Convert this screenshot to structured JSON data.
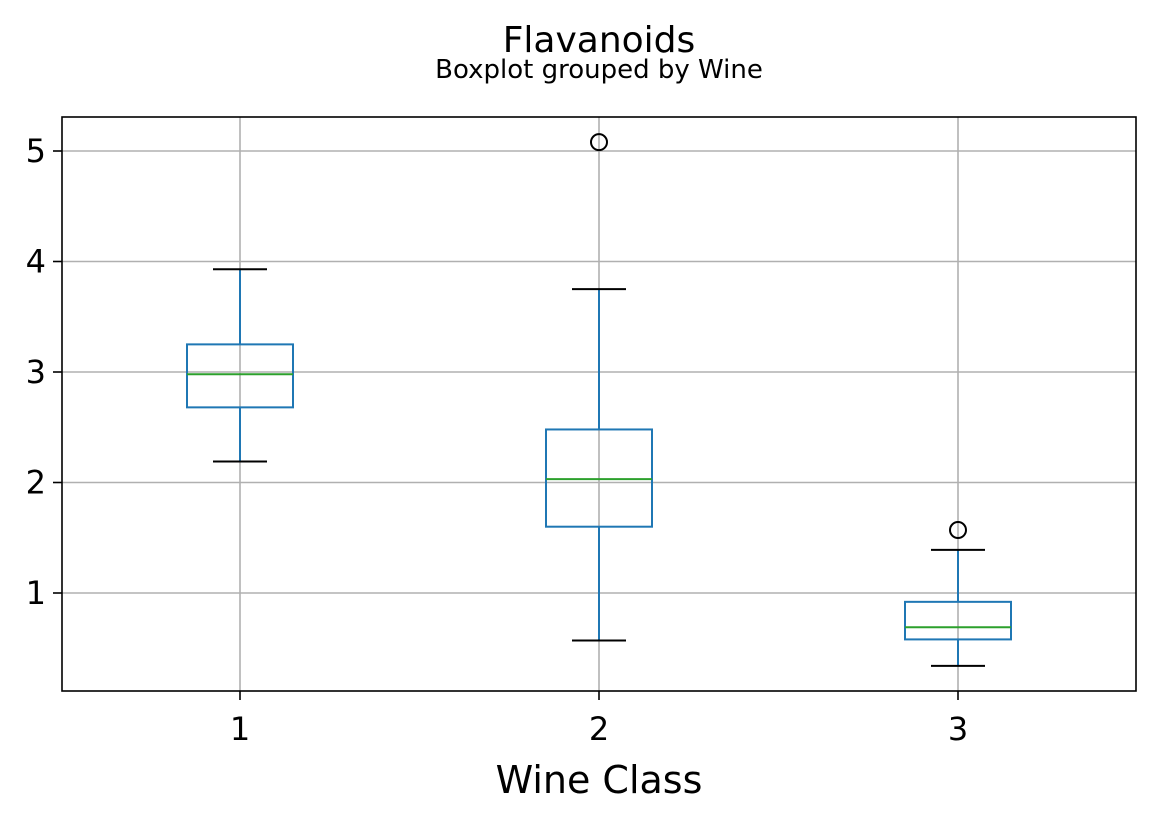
{
  "chart_data": {
    "type": "boxplot",
    "title": "Flavanoids",
    "subtitle": "Boxplot grouped by Wine",
    "xlabel": "Wine Class",
    "ylabel": "",
    "ylim": [
      0.1,
      5.3
    ],
    "yticks": [
      1,
      2,
      3,
      4,
      5
    ],
    "grid": true,
    "categories": [
      "1",
      "2",
      "3"
    ],
    "boxes": [
      {
        "category": "1",
        "whisker_low": 2.19,
        "q1": 2.68,
        "median": 2.98,
        "q3": 3.25,
        "whisker_high": 3.93,
        "outliers": []
      },
      {
        "category": "2",
        "whisker_low": 0.57,
        "q1": 1.6,
        "median": 2.03,
        "q3": 2.48,
        "whisker_high": 3.75,
        "outliers": [
          5.08
        ]
      },
      {
        "category": "3",
        "whisker_low": 0.34,
        "q1": 0.58,
        "median": 0.69,
        "q3": 0.92,
        "whisker_high": 1.39,
        "outliers": [
          1.57
        ]
      }
    ],
    "colors": {
      "box": "#1f77b4",
      "median": "#2ca02c",
      "whisker_cap": "#000000",
      "outlier": "#000000",
      "grid": "#b0b0b0"
    }
  }
}
